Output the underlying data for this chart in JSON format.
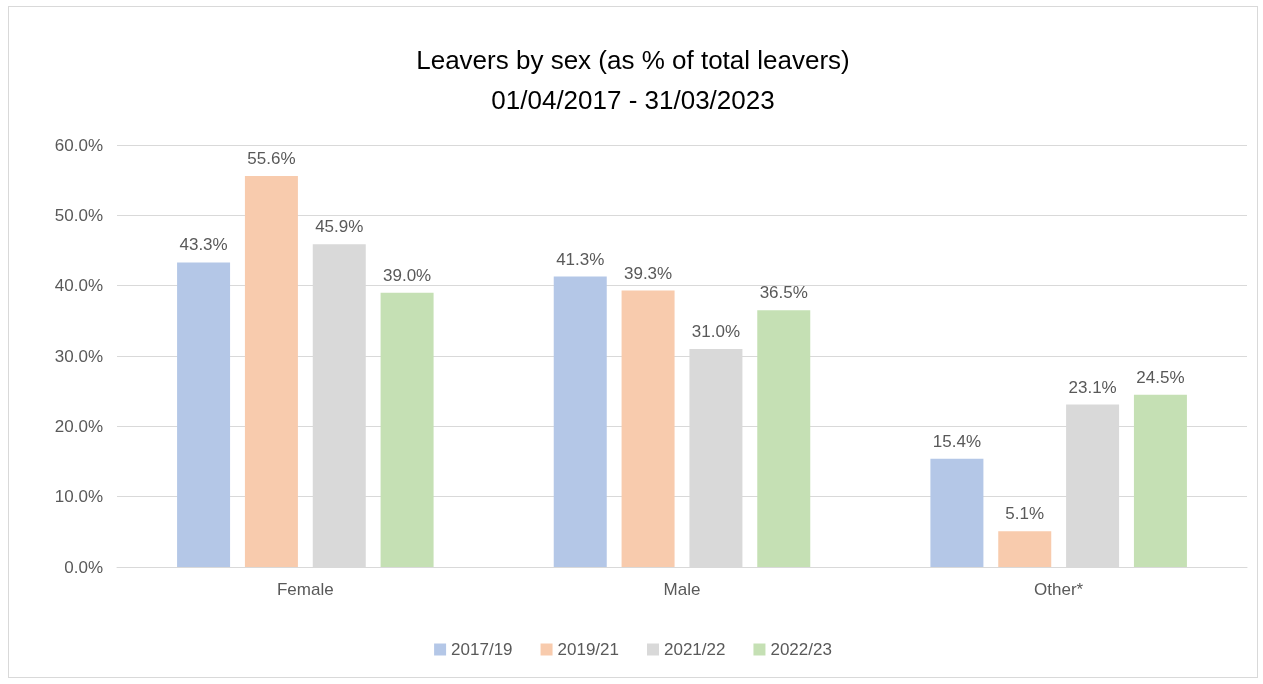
{
  "chart_data": {
    "type": "bar",
    "title": "Leavers by sex (as % of total leavers)\n01/04/2017 - 31/03/2023",
    "categories": [
      "Female",
      "Male",
      "Other*"
    ],
    "series": [
      {
        "name": "2017/19",
        "color": "#b4c7e7",
        "values": [
          43.3,
          41.3,
          15.4
        ],
        "value_labels": [
          "43.3%",
          "41.3%",
          "15.4%"
        ]
      },
      {
        "name": "2019/21",
        "color": "#f8cbad",
        "values": [
          55.6,
          39.3,
          5.1
        ],
        "value_labels": [
          "55.6%",
          "39.3%",
          "5.1%"
        ]
      },
      {
        "name": "2021/22",
        "color": "#d9d9d9",
        "values": [
          45.9,
          31.0,
          23.1
        ],
        "value_labels": [
          "45.9%",
          "31.0%",
          "23.1%"
        ]
      },
      {
        "name": "2022/23",
        "color": "#c5e0b4",
        "values": [
          39.0,
          36.5,
          24.5
        ],
        "value_labels": [
          "39.0%",
          "36.5%",
          "24.5%"
        ]
      }
    ],
    "ylim": [
      0,
      60
    ],
    "yticks": [
      {
        "value": 0,
        "label": "0.0%"
      },
      {
        "value": 10,
        "label": "10.0%"
      },
      {
        "value": 20,
        "label": "20.0%"
      },
      {
        "value": 30,
        "label": "30.0%"
      },
      {
        "value": 40,
        "label": "40.0%"
      },
      {
        "value": 50,
        "label": "50.0%"
      },
      {
        "value": 60,
        "label": "60.0%"
      }
    ],
    "grid": "y",
    "legend": "bottom"
  }
}
